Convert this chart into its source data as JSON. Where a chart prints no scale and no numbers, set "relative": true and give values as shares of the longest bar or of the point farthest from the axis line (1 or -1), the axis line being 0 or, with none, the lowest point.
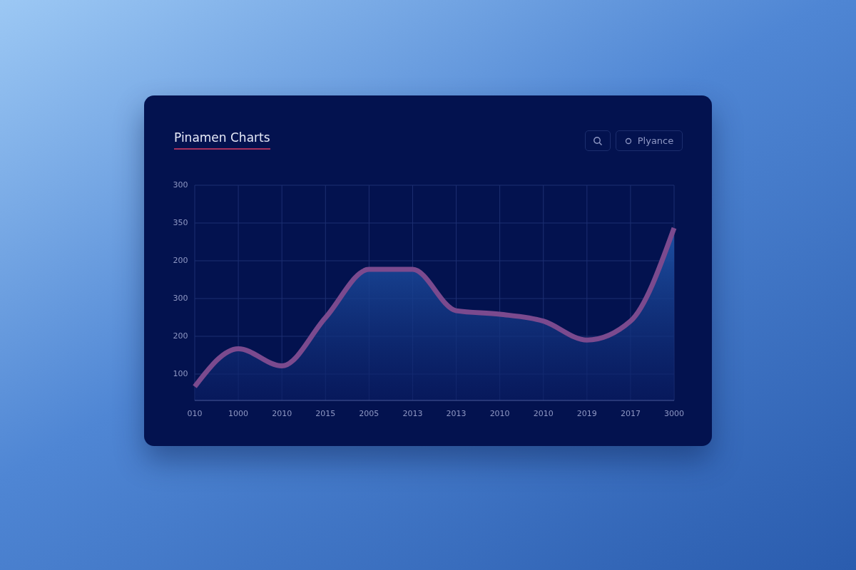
{
  "chart_data": {
    "type": "area",
    "title": "Pinamen Charts",
    "relative": true,
    "annotations": [
      "300",
      "350",
      "200",
      "300",
      "200",
      "100",
      "Plyance"
    ],
    "categories": [
      "010",
      "1000",
      "2010",
      "2015",
      "2005",
      "2013",
      "2013",
      "2010",
      "2010",
      "2019",
      "2017",
      "3000"
    ],
    "series": [
      {
        "color": "#7b4a8e",
        "values": [
          0.08,
          0.3,
          0.2,
          0.48,
          0.76,
          0.76,
          0.52,
          0.5,
          0.46,
          0.35,
          0.46,
          1
        ]
      }
    ],
    "grid": true,
    "marker": "none",
    "line_style": "solid"
  }
}
